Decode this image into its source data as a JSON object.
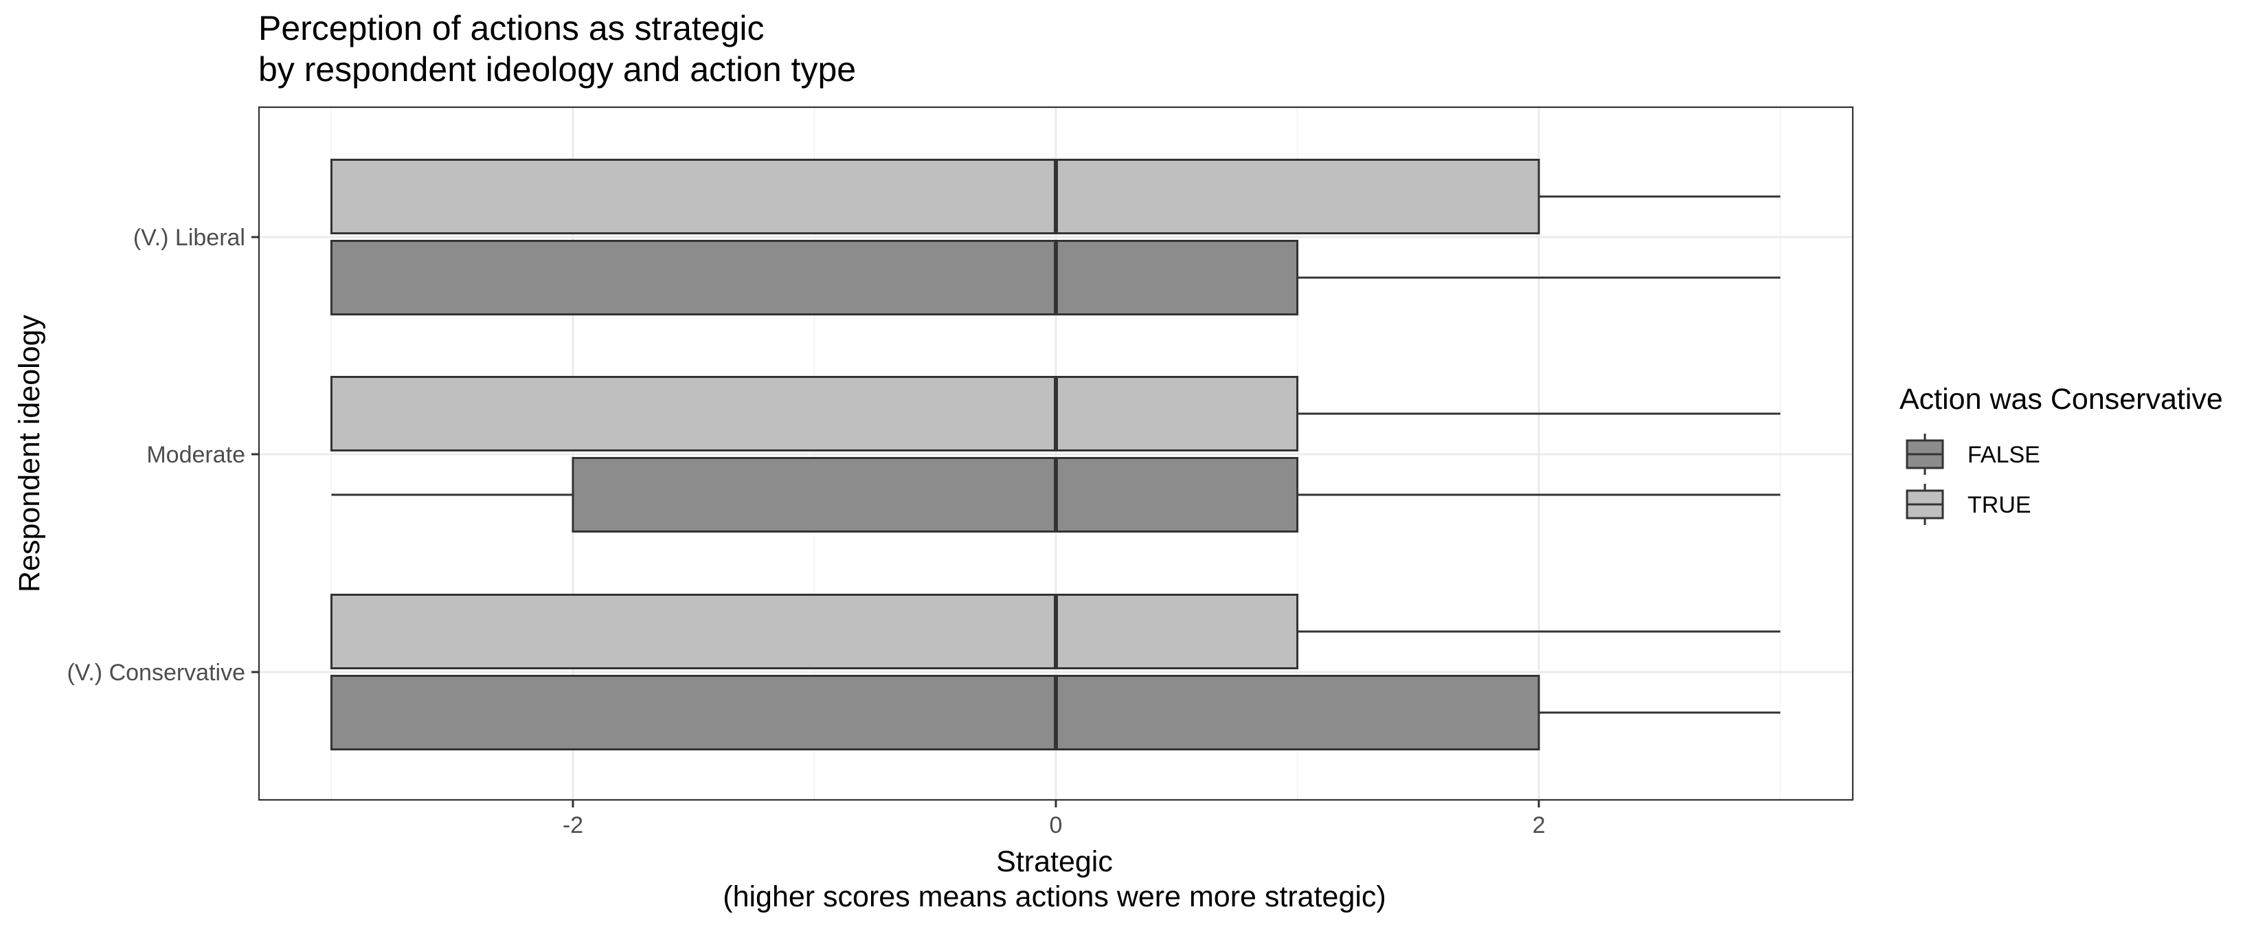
{
  "chart_data": {
    "type": "boxplot",
    "orientation": "horizontal",
    "title": [
      "Perception of actions as strategic",
      "by respondent ideology and action type"
    ],
    "xlabel": [
      "Strategic",
      "(higher scores means actions were more strategic)"
    ],
    "ylabel": "Respondent ideology",
    "xlim": [
      -3.3,
      3.3
    ],
    "x_ticks": [
      -2,
      0,
      2
    ],
    "x_tick_labels": [
      "-2",
      "0",
      "2"
    ],
    "x_minor_ticks": [
      -3,
      -1,
      1,
      3
    ],
    "categories": [
      "(V.) Liberal",
      "Moderate",
      "(V.) Conservative"
    ],
    "grid": true,
    "legend": {
      "title": "Action was Conservative",
      "placement": "right",
      "entries": [
        {
          "label": "FALSE",
          "color": "#8c8c8c"
        },
        {
          "label": "TRUE",
          "color": "#bfbfbf"
        }
      ]
    },
    "series": [
      {
        "name": "FALSE",
        "color": "#8c8c8c",
        "boxes": [
          {
            "category": "(V.) Liberal",
            "min": -3,
            "q1": -3,
            "median": 0,
            "q3": 1,
            "max": 3
          },
          {
            "category": "Moderate",
            "min": -3,
            "q1": -2,
            "median": 0,
            "q3": 1,
            "max": 3
          },
          {
            "category": "(V.) Conservative",
            "min": -3,
            "q1": -3,
            "median": 0,
            "q3": 2,
            "max": 3
          }
        ]
      },
      {
        "name": "TRUE",
        "color": "#bfbfbf",
        "boxes": [
          {
            "category": "(V.) Liberal",
            "min": -3,
            "q1": -3,
            "median": 0,
            "q3": 2,
            "max": 3
          },
          {
            "category": "Moderate",
            "min": -3,
            "q1": -3,
            "median": 0,
            "q3": 1,
            "max": 3
          },
          {
            "category": "(V.) Conservative",
            "min": -3,
            "q1": -3,
            "median": 0,
            "q3": 1,
            "max": 3
          }
        ]
      }
    ]
  }
}
